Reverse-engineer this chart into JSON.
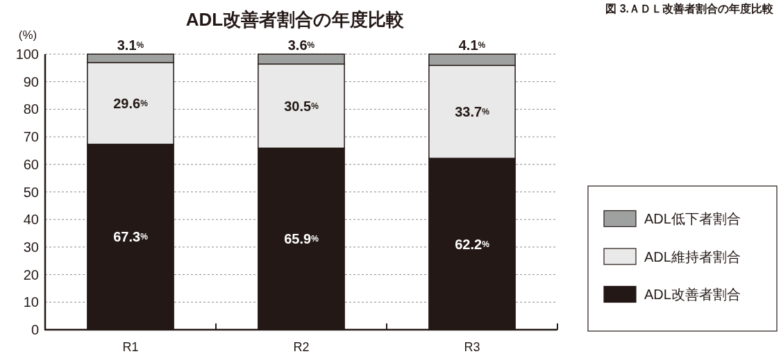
{
  "chart_data": {
    "type": "bar",
    "stacked": true,
    "title": "ADL改善者割合の年度比較",
    "ylabel": "(%)",
    "annotations": [
      "図 3.ＡＤＬ改善者割合の年度比較"
    ],
    "categories": [
      "R1",
      "R2",
      "R3"
    ],
    "series": [
      {
        "name": "ADL改善者割合",
        "color": "#231815",
        "values": [
          67.3,
          65.9,
          62.2
        ],
        "value_labels": [
          "67.3%",
          "65.9%",
          "62.2%"
        ]
      },
      {
        "name": "ADL維持者割合",
        "color": "#e8e9e8",
        "values": [
          29.6,
          30.5,
          33.7
        ],
        "value_labels": [
          "29.6%",
          "30.5%",
          "33.7%"
        ]
      },
      {
        "name": "ADL低下者割合",
        "color": "#9fa0a0",
        "values": [
          3.1,
          3.6,
          4.1
        ],
        "value_labels": [
          "3.1%",
          "3.6%",
          "4.1%"
        ]
      }
    ],
    "ylim": [
      0,
      100
    ],
    "yticks": [
      0,
      10,
      20,
      30,
      40,
      50,
      60,
      70,
      80,
      90,
      100
    ],
    "grid": "y",
    "legend": "right"
  }
}
